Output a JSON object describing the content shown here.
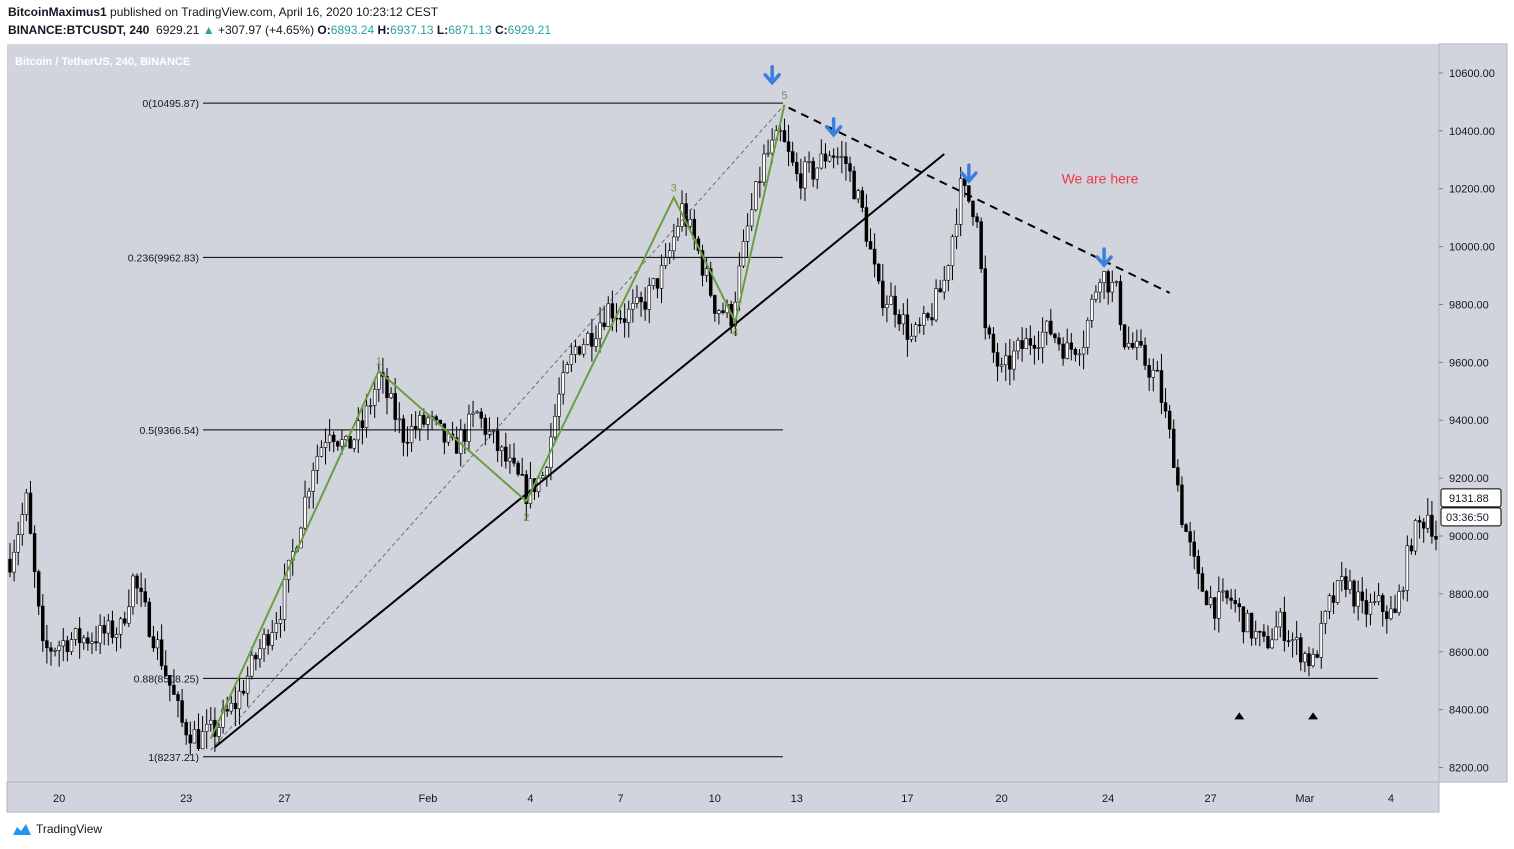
{
  "header": {
    "author": "BitcoinMaximus1",
    "published_text": "published on TradingView.com, April 16, 2020 10:23:12 CEST",
    "symbol": "BINANCE:BTCUSDT, 240",
    "last": "6929.21",
    "change_arrow": "▲",
    "change": "+307.97 (+4.65%)",
    "o_label": "O:",
    "o_value": "6893.24",
    "h_label": "H:",
    "h_value": "6937.13",
    "l_label": "L:",
    "l_value": "6871.13",
    "c_label": "C:",
    "c_value": "6929.21"
  },
  "footer": {
    "brand": "TradingView",
    "logo_icon": "tradingview-cloud-icon"
  },
  "colors": {
    "bg": "#d1d4dc",
    "up": "#ffffff",
    "down": "#000000",
    "wave": "#6a9e3f",
    "arrow": "#3d7fe0",
    "annotation": "#f23645"
  },
  "chart_data": {
    "type": "candlestick",
    "title": "Bitcoin / TetherUS, 240, BINANCE",
    "ylim": [
      8150,
      10700
    ],
    "y_ticks": [
      "10600.00",
      "10400.00",
      "10200.00",
      "10000.00",
      "9800.00",
      "9600.00",
      "9400.00",
      "9200.00",
      "9000.00",
      "8800.00",
      "8600.00",
      "8400.00",
      "8200.00"
    ],
    "x_ticks": [
      "20",
      "23",
      "27",
      "Feb",
      "4",
      "7",
      "10",
      "13",
      "17",
      "20",
      "24",
      "27",
      "Mar",
      "4"
    ],
    "x_tick_index": [
      12,
      43,
      67,
      102,
      127,
      149,
      172,
      192,
      219,
      242,
      268,
      293,
      316,
      337
    ],
    "n_bars": 349,
    "price_label": "9131.88",
    "countdown": "03:36:50",
    "current_price": 9131.88,
    "fib_levels": [
      {
        "label": "0(10495.87)",
        "value": 10495.87
      },
      {
        "label": "0.236(9962.83)",
        "value": 9962.83
      },
      {
        "label": "0.5(9366.54)",
        "value": 9366.54
      },
      {
        "label": "0.88(8508.25)",
        "value": 8508.25
      },
      {
        "label": "1(8237.21)",
        "value": 8237.21
      }
    ],
    "wave_labels": [
      {
        "label": "1",
        "i": 90,
        "v": 9570
      },
      {
        "label": "2",
        "i": 126,
        "v": 9100
      },
      {
        "label": "3",
        "i": 162,
        "v": 10170
      },
      {
        "label": "4",
        "i": 177,
        "v": 9740
      },
      {
        "label": "5",
        "i": 189,
        "v": 10490
      }
    ],
    "wave_path": [
      [
        49,
        8300
      ],
      [
        90,
        9570
      ],
      [
        126,
        9120
      ],
      [
        162,
        10170
      ],
      [
        177,
        9740
      ],
      [
        189,
        10490
      ]
    ],
    "trendline": [
      [
        50,
        8270
      ],
      [
        228,
        10320
      ]
    ],
    "resistance": [
      [
        190,
        10480
      ],
      [
        283,
        9840
      ]
    ],
    "arrows": [
      [
        186,
        10580
      ],
      [
        201,
        10400
      ],
      [
        234,
        10240
      ],
      [
        267,
        9950
      ]
    ],
    "annotation": {
      "text": "We are here",
      "i": 266,
      "v": 10200
    },
    "triangles": [
      [
        300,
        8380
      ],
      [
        318,
        8380
      ]
    ],
    "anchors": [
      [
        0,
        8920
      ],
      [
        4,
        9120
      ],
      [
        8,
        8600
      ],
      [
        14,
        8640
      ],
      [
        20,
        8650
      ],
      [
        27,
        8680
      ],
      [
        30,
        8850
      ],
      [
        36,
        8620
      ],
      [
        42,
        8350
      ],
      [
        46,
        8300
      ],
      [
        50,
        8330
      ],
      [
        55,
        8420
      ],
      [
        60,
        8580
      ],
      [
        66,
        8750
      ],
      [
        70,
        9000
      ],
      [
        74,
        9250
      ],
      [
        78,
        9380
      ],
      [
        82,
        9300
      ],
      [
        86,
        9380
      ],
      [
        90,
        9550
      ],
      [
        96,
        9350
      ],
      [
        102,
        9400
      ],
      [
        108,
        9300
      ],
      [
        114,
        9420
      ],
      [
        120,
        9280
      ],
      [
        126,
        9150
      ],
      [
        130,
        9210
      ],
      [
        134,
        9480
      ],
      [
        138,
        9650
      ],
      [
        142,
        9700
      ],
      [
        146,
        9790
      ],
      [
        150,
        9760
      ],
      [
        154,
        9790
      ],
      [
        160,
        9930
      ],
      [
        164,
        10130
      ],
      [
        168,
        9980
      ],
      [
        172,
        9800
      ],
      [
        176,
        9760
      ],
      [
        180,
        10060
      ],
      [
        184,
        10300
      ],
      [
        188,
        10380
      ],
      [
        192,
        10240
      ],
      [
        196,
        10260
      ],
      [
        200,
        10330
      ],
      [
        204,
        10290
      ],
      [
        208,
        10120
      ],
      [
        212,
        9840
      ],
      [
        216,
        9800
      ],
      [
        220,
        9680
      ],
      [
        224,
        9740
      ],
      [
        228,
        9880
      ],
      [
        232,
        10200
      ],
      [
        236,
        10120
      ],
      [
        238,
        9700
      ],
      [
        242,
        9560
      ],
      [
        246,
        9640
      ],
      [
        250,
        9690
      ],
      [
        254,
        9710
      ],
      [
        258,
        9640
      ],
      [
        262,
        9680
      ],
      [
        266,
        9920
      ],
      [
        270,
        9840
      ],
      [
        272,
        9680
      ],
      [
        276,
        9620
      ],
      [
        280,
        9540
      ],
      [
        284,
        9280
      ],
      [
        286,
        9070
      ],
      [
        290,
        8840
      ],
      [
        294,
        8760
      ],
      [
        298,
        8780
      ],
      [
        302,
        8690
      ],
      [
        306,
        8620
      ],
      [
        310,
        8700
      ],
      [
        314,
        8620
      ],
      [
        318,
        8560
      ],
      [
        322,
        8760
      ],
      [
        326,
        8850
      ],
      [
        330,
        8740
      ],
      [
        334,
        8760
      ],
      [
        338,
        8720
      ],
      [
        342,
        8990
      ],
      [
        346,
        9080
      ],
      [
        348,
        9000
      ]
    ]
  }
}
